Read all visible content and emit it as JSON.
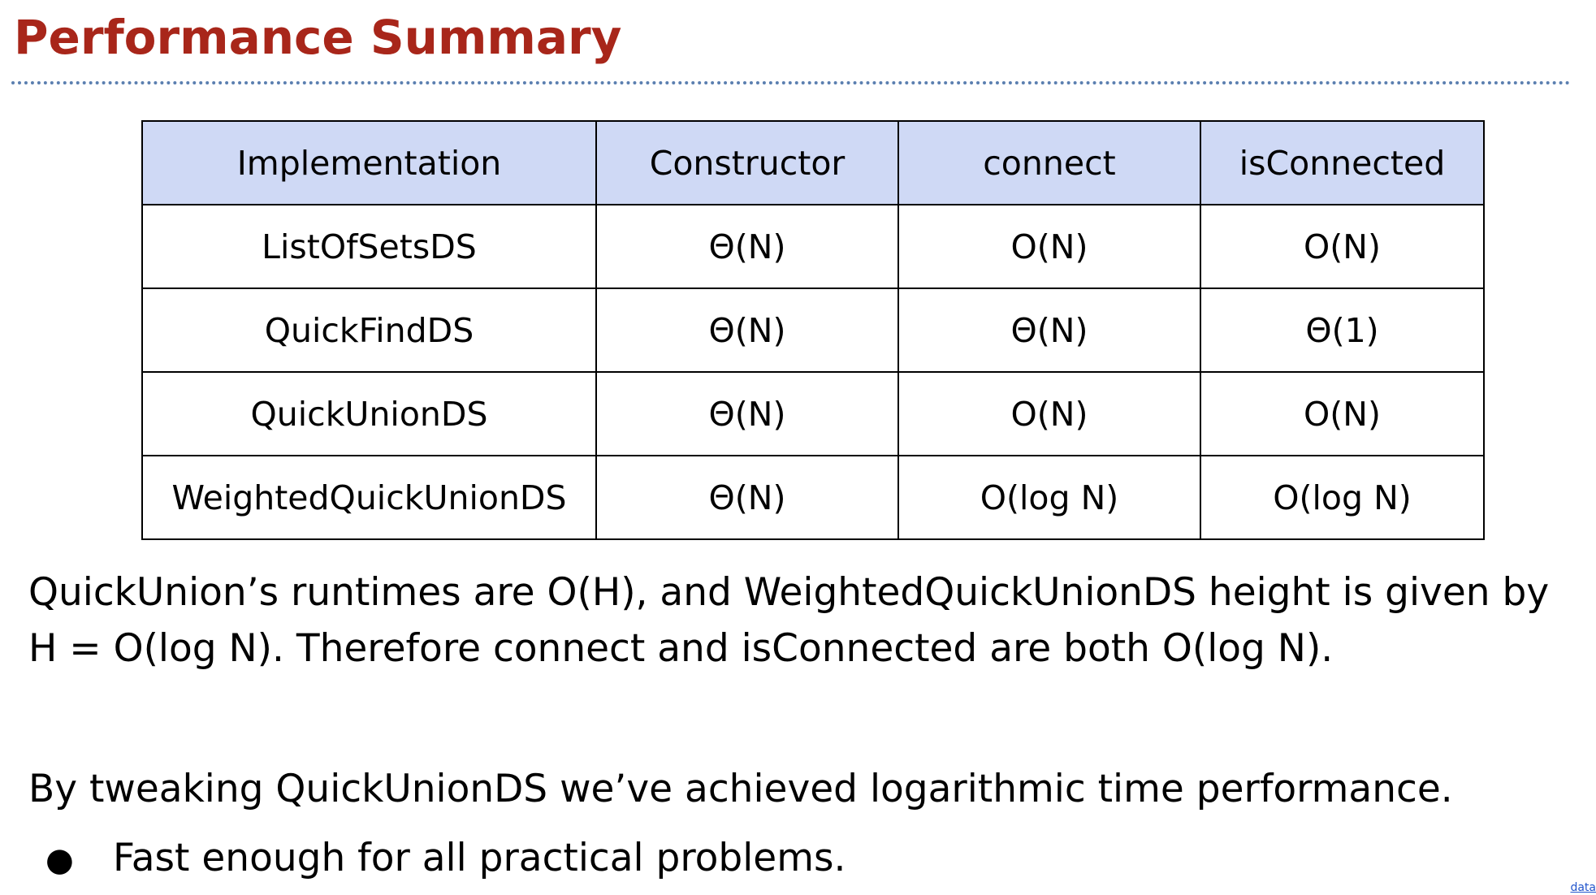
{
  "slide": {
    "title": "Performance Summary"
  },
  "table": {
    "headers": [
      "Implementation",
      "Constructor",
      "connect",
      "isConnected"
    ],
    "rows": [
      [
        "ListOfSetsDS",
        "Θ(N)",
        "O(N)",
        "O(N)"
      ],
      [
        "QuickFindDS",
        "Θ(N)",
        "Θ(N)",
        "Θ(1)"
      ],
      [
        "QuickUnionDS",
        "Θ(N)",
        "O(N)",
        "O(N)"
      ],
      [
        "WeightedQuickUnionDS",
        "Θ(N)",
        "O(log N)",
        "O(log N)"
      ]
    ]
  },
  "body": {
    "paragraph_1_line_1": "QuickUnion’s runtimes are O(H), and WeightedQuickUnionDS height is given by",
    "paragraph_1_line_2": "H = O(log N). Therefore connect and isConnected are both O(log N).",
    "paragraph_2": "By tweaking QuickUnionDS we’ve achieved logarithmic time performance.",
    "bullet_symbol": "●",
    "bullets": [
      "Fast enough for all practical problems."
    ]
  },
  "footer": {
    "link_text": "data"
  }
}
